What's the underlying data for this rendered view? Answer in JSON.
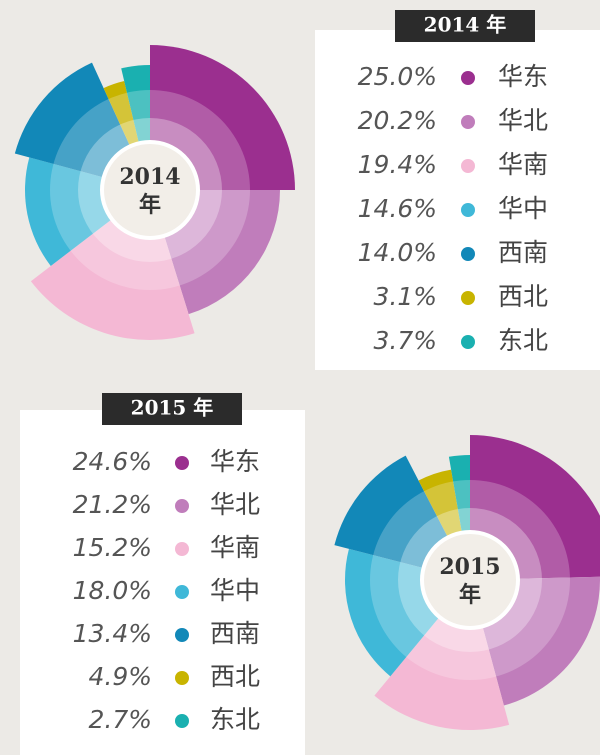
{
  "chart_data": [
    {
      "type": "pie",
      "title": "2014 年",
      "center_label_lines": [
        "2014",
        "年"
      ],
      "categories": [
        "华东",
        "华北",
        "华南",
        "华中",
        "西南",
        "西北",
        "东北"
      ],
      "values": [
        25.0,
        20.2,
        19.4,
        14.6,
        14.0,
        3.1,
        3.7
      ],
      "value_labels": [
        "25.0%",
        "20.2%",
        "19.4%",
        "14.6%",
        "14.0%",
        "3.1%",
        "3.7%"
      ],
      "colors": [
        "#9b2f8f",
        "#c07dbb",
        "#f4b8d4",
        "#3fb8d8",
        "#1288b8",
        "#c8b400",
        "#1ab0b0"
      ]
    },
    {
      "type": "pie",
      "title": "2015 年",
      "center_label_lines": [
        "2015",
        "年"
      ],
      "categories": [
        "华东",
        "华北",
        "华南",
        "华中",
        "西南",
        "西北",
        "东北"
      ],
      "values": [
        24.6,
        21.2,
        15.2,
        18.0,
        13.4,
        4.9,
        2.7
      ],
      "value_labels": [
        "24.6%",
        "21.2%",
        "15.2%",
        "18.0%",
        "13.4%",
        "4.9%",
        "2.7%"
      ],
      "colors": [
        "#9b2f8f",
        "#c07dbb",
        "#f4b8d4",
        "#3fb8d8",
        "#1288b8",
        "#c8b400",
        "#1ab0b0"
      ]
    }
  ]
}
